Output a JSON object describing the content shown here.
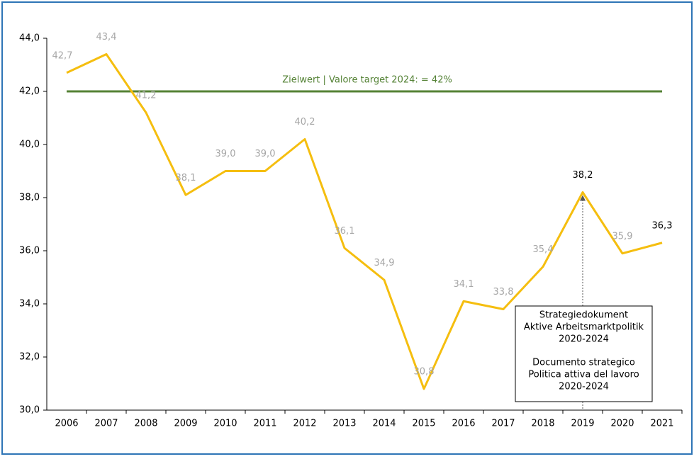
{
  "chart_data": {
    "type": "line",
    "categories": [
      "2006",
      "2007",
      "2008",
      "2009",
      "2010",
      "2011",
      "2012",
      "2013",
      "2014",
      "2015",
      "2016",
      "2017",
      "2018",
      "2019",
      "2020",
      "2021"
    ],
    "series": [
      {
        "color": "#f5be0f",
        "values": [
          42.7,
          43.4,
          41.2,
          38.1,
          39.0,
          39.0,
          40.2,
          36.1,
          34.9,
          30.8,
          34.1,
          33.8,
          35.4,
          38.2,
          35.9,
          36.3
        ],
        "value_labels": [
          "42,7",
          "43,4",
          "41,2",
          "38,1",
          "39,0",
          "39,0",
          "40,2",
          "36,1",
          "34,9",
          "30,8",
          "34,1",
          "33,8",
          "35,4",
          "38,2",
          "35,9",
          "36,3"
        ],
        "value_label_colors": [
          "#a6a6a6",
          "#a6a6a6",
          "#a6a6a6",
          "#a6a6a6",
          "#a6a6a6",
          "#a6a6a6",
          "#a6a6a6",
          "#a6a6a6",
          "#a6a6a6",
          "#a6a6a6",
          "#a6a6a6",
          "#a6a6a6",
          "#a6a6a6",
          "#000000",
          "#a6a6a6",
          "#000000"
        ]
      }
    ],
    "ylim": [
      30,
      44
    ],
    "yticks": [
      {
        "value": 30,
        "label": "30,0"
      },
      {
        "value": 32,
        "label": "32,0"
      },
      {
        "value": 34,
        "label": "34,0"
      },
      {
        "value": 36,
        "label": "36,0"
      },
      {
        "value": 38,
        "label": "38,0"
      },
      {
        "value": 40,
        "label": "40,0"
      },
      {
        "value": 42,
        "label": "42,0"
      },
      {
        "value": 44,
        "label": "44,0"
      }
    ],
    "target": {
      "value": 42,
      "label": "Zielwert | Valore target 2024: = 42%",
      "color": "#548235"
    },
    "annotation": {
      "category": "2019",
      "lines": [
        "Strategiedokument",
        "Aktive Arbeitsmarktpolitik",
        "2020-2024",
        "Documento strategico",
        "Politica attiva del lavoro",
        "2020-2024"
      ]
    }
  }
}
